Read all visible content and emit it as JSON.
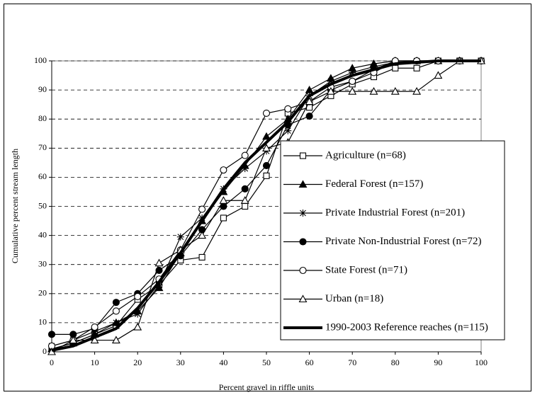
{
  "chart_data": {
    "type": "line",
    "x_label": "Percent gravel in riffle units",
    "y_label": "Cumulative percent stream length",
    "x": [
      0,
      5,
      10,
      15,
      20,
      25,
      30,
      35,
      40,
      45,
      50,
      55,
      60,
      65,
      70,
      75,
      80,
      85,
      90,
      95,
      100
    ],
    "xlim": [
      0,
      100
    ],
    "xticks": [
      0,
      10,
      20,
      30,
      40,
      50,
      60,
      70,
      80,
      90,
      100
    ],
    "ylim": [
      0,
      100
    ],
    "yticks": [
      0,
      10,
      20,
      30,
      40,
      50,
      60,
      70,
      80,
      90,
      100
    ],
    "grid": true,
    "series": [
      {
        "name": "Agriculture (n=68)",
        "color": "#000000",
        "marker": "square",
        "filled": false,
        "values": [
          1,
          3,
          6,
          9,
          18,
          23,
          31.5,
          32.5,
          46,
          50,
          60.5,
          82,
          84,
          88,
          92,
          94.5,
          97.5,
          97.5,
          100,
          100,
          100
        ]
      },
      {
        "name": "Federal Forest (n=157)",
        "color": "#000000",
        "marker": "triangle",
        "filled": true,
        "values": [
          1,
          3,
          6,
          10,
          14,
          22,
          34,
          45,
          55,
          64,
          74,
          80,
          90,
          94,
          97.5,
          99,
          100,
          100,
          100,
          100,
          100
        ]
      },
      {
        "name": "Private Industrial Forest (n=201)",
        "color": "#000000",
        "marker": "star",
        "filled": false,
        "values": [
          2,
          4,
          7,
          10,
          13,
          23,
          39.5,
          46,
          56,
          63,
          69,
          76,
          88,
          93,
          96,
          98,
          99.5,
          100,
          100,
          100,
          100
        ]
      },
      {
        "name": "Private Non-Industrial Forest (n=72)",
        "color": "#000000",
        "marker": "circle",
        "filled": true,
        "values": [
          6,
          6,
          8,
          17,
          20,
          28,
          33,
          42,
          50,
          56,
          64,
          78,
          81,
          90,
          93,
          97,
          100,
          100,
          100,
          100,
          100
        ]
      },
      {
        "name": "State Forest (n=71)",
        "color": "#000000",
        "marker": "circle",
        "filled": false,
        "values": [
          2,
          4,
          8.5,
          14,
          19,
          25,
          35,
          49,
          62.5,
          67.5,
          82,
          83.5,
          86,
          91,
          93,
          96,
          100,
          100,
          100,
          100,
          100
        ]
      },
      {
        "name": "Urban (n=18)",
        "color": "#000000",
        "marker": "triangle",
        "filled": false,
        "values": [
          0,
          4,
          4,
          4,
          8.5,
          30.5,
          35,
          40,
          52,
          52,
          70,
          72,
          86,
          89.5,
          89.5,
          89.5,
          89.5,
          89.5,
          95,
          100,
          100
        ]
      },
      {
        "name": "1990-2003 Reference reaches (n=115)",
        "color": "#000000",
        "marker": "none",
        "filled": false,
        "values": [
          0.5,
          2,
          5,
          8,
          15,
          24,
          34,
          45,
          56,
          65,
          72,
          79,
          88,
          92,
          95,
          97,
          99,
          99.5,
          100,
          100,
          100
        ]
      }
    ]
  }
}
